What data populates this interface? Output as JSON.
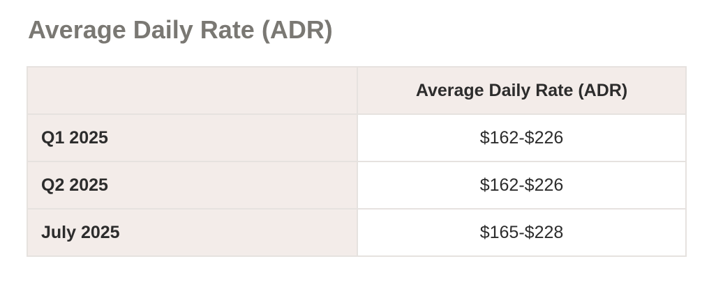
{
  "title": "Average Daily Rate (ADR)",
  "table": {
    "header": [
      null,
      "Average Daily Rate (ADR)"
    ],
    "rows": [
      [
        "Q1 2025",
        "$162-$226"
      ],
      [
        "Q2 2025",
        "$162-$226"
      ],
      [
        "July 2025",
        "$165-$228"
      ]
    ]
  }
}
